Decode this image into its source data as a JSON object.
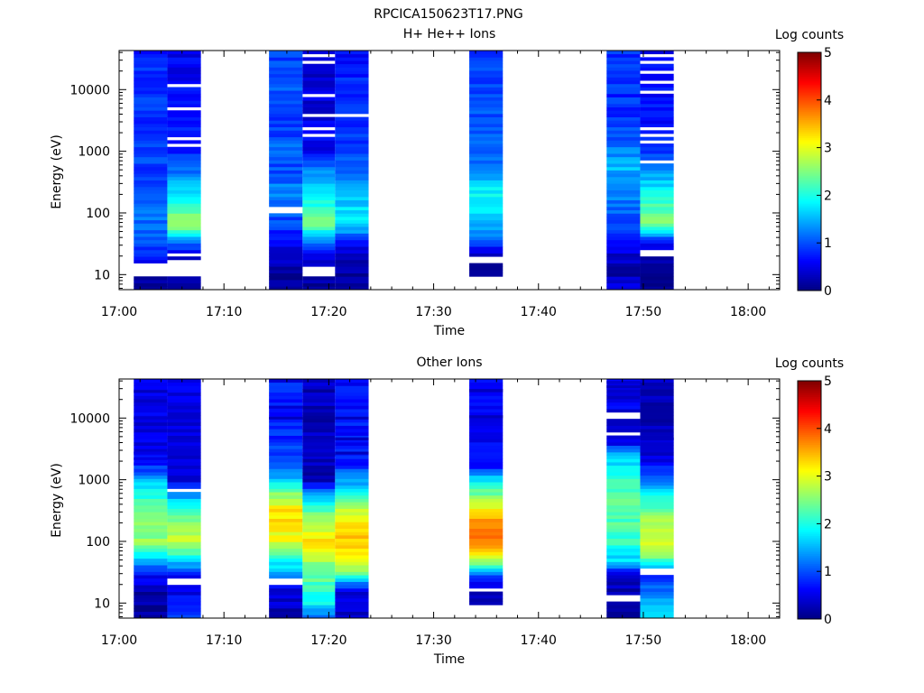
{
  "figure": {
    "title": "RPCICA150623T17.PNG"
  },
  "chart_data": [
    {
      "type": "heatmap",
      "title": "H+ He++ Ions",
      "xlabel": "Time",
      "ylabel": "Energy (eV)",
      "y_scale": "log",
      "xlim": [
        "17:00",
        "18:03"
      ],
      "ylim": [
        5.7,
        43000
      ],
      "x_ticks": [
        "17:00",
        "17:10",
        "17:20",
        "17:30",
        "17:40",
        "17:50",
        "18:00"
      ],
      "y_ticks": [
        "10",
        "100",
        "1000",
        "10000"
      ],
      "colorbar": {
        "label": "Log counts",
        "range": [
          0,
          5
        ],
        "ticks": [
          "0",
          "1",
          "2",
          "3",
          "4",
          "5"
        ]
      },
      "columns": [
        {
          "t_start": "17:01.4",
          "t_end": "17:04.6",
          "profile": [
            [
              5.7,
              0.05
            ],
            [
              10,
              0.2
            ],
            [
              15,
              0.5
            ],
            [
              25,
              0.9
            ],
            [
              60,
              1.2
            ],
            [
              150,
              1.1
            ],
            [
              400,
              0.9
            ],
            [
              1000,
              1.0
            ],
            [
              3000,
              0.85
            ],
            [
              10000,
              0.9
            ],
            [
              43000,
              0.8
            ]
          ],
          "gaps": [
            [
              9.5,
              15
            ]
          ],
          "noise": 0.18
        },
        {
          "t_start": "17:04.6",
          "t_end": "17:07.8",
          "profile": [
            [
              5.7,
              0.05
            ],
            [
              10,
              0.2
            ],
            [
              20,
              0.4
            ],
            [
              40,
              1.5
            ],
            [
              65,
              2.8
            ],
            [
              100,
              2.3
            ],
            [
              200,
              1.8
            ],
            [
              400,
              1.3
            ],
            [
              1000,
              0.8
            ],
            [
              3000,
              0.7
            ],
            [
              43000,
              0.55
            ]
          ],
          "gaps": [
            [
              9.5,
              17
            ],
            [
              20,
              23
            ],
            [
              28,
              30
            ],
            [
              1200,
              1350
            ],
            [
              1600,
              1750
            ],
            [
              4500,
              5200
            ],
            [
              10500,
              12000
            ]
          ],
          "noise": 0.18
        },
        {
          "t_start": "17:14.3",
          "t_end": "17:17.5",
          "profile": [
            [
              5.7,
              0.05
            ],
            [
              15,
              0.2
            ],
            [
              25,
              0.5
            ],
            [
              60,
              0.9
            ],
            [
              110,
              1.1
            ],
            [
              200,
              1.3
            ],
            [
              500,
              1.0
            ],
            [
              1000,
              1.1
            ],
            [
              3000,
              0.9
            ],
            [
              10000,
              1.0
            ],
            [
              43000,
              0.95
            ]
          ],
          "gaps": [
            [
              105,
              120
            ]
          ],
          "noise": 0.2
        },
        {
          "t_start": "17:17.5",
          "t_end": "17:20.6",
          "profile": [
            [
              5.7,
              0.1
            ],
            [
              10,
              0.2
            ],
            [
              20,
              0.5
            ],
            [
              40,
              1.6
            ],
            [
              70,
              2.5
            ],
            [
              100,
              2.2
            ],
            [
              200,
              1.8
            ],
            [
              400,
              1.4
            ],
            [
              1000,
              0.6
            ],
            [
              3000,
              0.5
            ],
            [
              43000,
              0.4
            ]
          ],
          "gaps": [
            [
              9,
              14
            ],
            [
              1000,
              1100
            ],
            [
              1300,
              1400
            ],
            [
              1700,
              1850
            ],
            [
              2300,
              2500
            ],
            [
              3000,
              3200
            ],
            [
              3800,
              4100
            ],
            [
              5000,
              5400
            ],
            [
              7500,
              8500
            ],
            [
              25000,
              28000
            ],
            [
              34000,
              37000
            ]
          ],
          "noise": 0.2
        },
        {
          "t_start": "17:20.6",
          "t_end": "17:23.8",
          "profile": [
            [
              5.7,
              0.1
            ],
            [
              15,
              0.2
            ],
            [
              30,
              0.6
            ],
            [
              50,
              1.4
            ],
            [
              80,
              1.9
            ],
            [
              150,
              1.6
            ],
            [
              400,
              1.2
            ],
            [
              1000,
              0.9
            ],
            [
              10000,
              0.8
            ],
            [
              43000,
              0.7
            ]
          ],
          "gaps": [
            [
              3800,
              4100
            ]
          ],
          "noise": 0.18
        },
        {
          "t_start": "17:33.4",
          "t_end": "17:36.6",
          "profile": [
            [
              5.7,
              0.05
            ],
            [
              15,
              0.1
            ],
            [
              25,
              0.6
            ],
            [
              50,
              1.4
            ],
            [
              100,
              1.7
            ],
            [
              200,
              1.9
            ],
            [
              300,
              1.7
            ],
            [
              500,
              1.2
            ],
            [
              1000,
              1.1
            ],
            [
              3000,
              1.05
            ],
            [
              10000,
              0.95
            ],
            [
              43000,
              0.9
            ]
          ],
          "gaps": [
            [
              5.7,
              9.5
            ],
            [
              15,
              20
            ]
          ],
          "noise": 0.16
        },
        {
          "t_start": "17:46.5",
          "t_end": "17:49.7",
          "profile": [
            [
              5.7,
              0.4
            ],
            [
              10,
              0.3
            ],
            [
              20,
              0.35
            ],
            [
              40,
              0.8
            ],
            [
              100,
              1.1
            ],
            [
              250,
              1.3
            ],
            [
              600,
              1.6
            ],
            [
              1000,
              1.3
            ],
            [
              3000,
              0.85
            ],
            [
              43000,
              0.85
            ]
          ],
          "gaps": [],
          "noise": 0.22
        },
        {
          "t_start": "17:49.7",
          "t_end": "17:52.9",
          "profile": [
            [
              5.7,
              0.05
            ],
            [
              15,
              0.15
            ],
            [
              30,
              0.5
            ],
            [
              45,
              1.4
            ],
            [
              70,
              2.7
            ],
            [
              100,
              2.4
            ],
            [
              200,
              1.9
            ],
            [
              400,
              1.5
            ],
            [
              600,
              1.2
            ],
            [
              1000,
              0.8
            ],
            [
              3000,
              0.7
            ],
            [
              43000,
              0.6
            ]
          ],
          "gaps": [
            [
              20,
              25
            ],
            [
              600,
              700
            ],
            [
              1400,
              1550
            ],
            [
              1800,
              2000
            ],
            [
              2300,
              2500
            ],
            [
              5000,
              5500
            ],
            [
              9000,
              9800
            ],
            [
              13000,
              14500
            ],
            [
              18000,
              20000
            ],
            [
              27000,
              29000
            ],
            [
              35000,
              38000
            ]
          ],
          "noise": 0.18
        }
      ]
    },
    {
      "type": "heatmap",
      "title": "Other Ions",
      "xlabel": "Time",
      "ylabel": "Energy (eV)",
      "y_scale": "log",
      "xlim": [
        "17:00",
        "18:03"
      ],
      "ylim": [
        5.7,
        43000
      ],
      "x_ticks": [
        "17:00",
        "17:10",
        "17:20",
        "17:30",
        "17:40",
        "17:50",
        "18:00"
      ],
      "y_ticks": [
        "10",
        "100",
        "1000",
        "10000"
      ],
      "colorbar": {
        "label": "Log counts",
        "range": [
          0,
          5
        ],
        "ticks": [
          "0",
          "1",
          "2",
          "3",
          "4",
          "5"
        ]
      },
      "columns": [
        {
          "t_start": "17:01.4",
          "t_end": "17:04.6",
          "profile": [
            [
              5.7,
              0.1
            ],
            [
              15,
              0.2
            ],
            [
              30,
              0.7
            ],
            [
              50,
              1.6
            ],
            [
              100,
              2.6
            ],
            [
              200,
              2.5
            ],
            [
              500,
              2.1
            ],
            [
              1000,
              1.6
            ],
            [
              1400,
              1.0
            ],
            [
              2600,
              0.5
            ]
          ],
          "gaps": [],
          "lines": [
            [
              1800,
              0.6
            ],
            [
              2200,
              0.5
            ],
            [
              2700,
              0.5
            ],
            [
              10000,
              0.4
            ],
            [
              27000,
              0.3
            ]
          ],
          "noise": 0.18
        },
        {
          "t_start": "17:04.6",
          "t_end": "17:07.8",
          "profile": [
            [
              5.7,
              1.0
            ],
            [
              10,
              0.8
            ],
            [
              15,
              0.5
            ],
            [
              30,
              0.7
            ],
            [
              50,
              1.8
            ],
            [
              100,
              2.9
            ],
            [
              200,
              2.6
            ],
            [
              400,
              2.0
            ],
            [
              600,
              1.2
            ],
            [
              1000,
              0.5
            ]
          ],
          "gaps": [
            [
              20,
              25
            ],
            [
              650,
              750
            ]
          ],
          "lines": [],
          "noise": 0.18
        },
        {
          "t_start": "17:14.3",
          "t_end": "17:17.5",
          "profile": [
            [
              5.7,
              0.1
            ],
            [
              10,
              0.4
            ],
            [
              20,
              0.6
            ],
            [
              35,
              1.5
            ],
            [
              100,
              3.0
            ],
            [
              300,
              3.3
            ],
            [
              600,
              2.6
            ],
            [
              1000,
              1.6
            ],
            [
              2000,
              1.1
            ],
            [
              4500,
              0.8
            ]
          ],
          "gaps": [
            [
              20,
              26
            ]
          ],
          "lines": [
            [
              10000,
              0.3
            ],
            [
              15000,
              0.4
            ],
            [
              40000,
              0.4
            ]
          ],
          "noise": 0.2
        },
        {
          "t_start": "17:17.5",
          "t_end": "17:20.6",
          "profile": [
            [
              5.7,
              1.0
            ],
            [
              10,
              1.9
            ],
            [
              20,
              2.2
            ],
            [
              50,
              2.7
            ],
            [
              100,
              3.2
            ],
            [
              250,
              2.6
            ],
            [
              500,
              1.6
            ],
            [
              1000,
              0.3
            ]
          ],
          "gaps": [],
          "lines": [
            [
              2500,
              0.3
            ]
          ],
          "noise": 0.2
        },
        {
          "t_start": "17:20.6",
          "t_end": "17:23.8",
          "profile": [
            [
              5.7,
              0.4
            ],
            [
              15,
              0.5
            ],
            [
              20,
              1.2
            ],
            [
              40,
              2.9
            ],
            [
              100,
              3.4
            ],
            [
              200,
              3.2
            ],
            [
              500,
              2.4
            ],
            [
              1000,
              1.3
            ],
            [
              2000,
              0.7
            ]
          ],
          "gaps": [],
          "lines": [
            [
              2700,
              0.3
            ],
            [
              4600,
              0.3
            ],
            [
              10000,
              0.3
            ]
          ],
          "noise": 0.2
        },
        {
          "t_start": "17:33.4",
          "t_end": "17:36.6",
          "profile": [
            [
              5.7,
              0.2
            ],
            [
              15,
              0.3
            ],
            [
              25,
              0.8
            ],
            [
              40,
              2.2
            ],
            [
              80,
              3.6
            ],
            [
              120,
              3.9
            ],
            [
              200,
              3.7
            ],
            [
              400,
              2.9
            ],
            [
              1000,
              1.8
            ],
            [
              1700,
              0.6
            ]
          ],
          "gaps": [
            [
              5.7,
              9.5
            ],
            [
              15,
              17
            ]
          ],
          "lines": [
            [
              10500,
              0.3
            ],
            [
              28000,
              0.3
            ]
          ],
          "noise": 0.15
        },
        {
          "t_start": "17:46.5",
          "t_end": "17:49.7",
          "profile": [
            [
              5.7,
              0.05
            ],
            [
              15,
              0.2
            ],
            [
              30,
              0.6
            ],
            [
              50,
              1.7
            ],
            [
              100,
              2.1
            ],
            [
              400,
              2.4
            ],
            [
              1000,
              2.2
            ],
            [
              2500,
              1.6
            ],
            [
              4000,
              0.5
            ],
            [
              15000,
              0.5
            ]
          ],
          "gaps": [
            [
              10,
              14
            ],
            [
              5000,
              6000
            ],
            [
              10000,
              12000
            ]
          ],
          "lines": [
            [
              32000,
              0.3
            ],
            [
              38000,
              0.4
            ]
          ],
          "noise": 0.22
        },
        {
          "t_start": "17:49.7",
          "t_end": "17:52.9",
          "profile": [
            [
              5.7,
              1.7
            ],
            [
              15,
              1.2
            ],
            [
              25,
              0.8
            ],
            [
              40,
              1.6
            ],
            [
              60,
              2.8
            ],
            [
              100,
              3.0
            ],
            [
              200,
              2.8
            ],
            [
              400,
              2.2
            ],
            [
              1000,
              1.2
            ],
            [
              2000,
              0.5
            ],
            [
              3000,
              0.3
            ]
          ],
          "gaps": [
            [
              30,
              35
            ]
          ],
          "lines": [
            [
              4600,
              0.3
            ]
          ],
          "noise": 0.18
        }
      ]
    }
  ]
}
